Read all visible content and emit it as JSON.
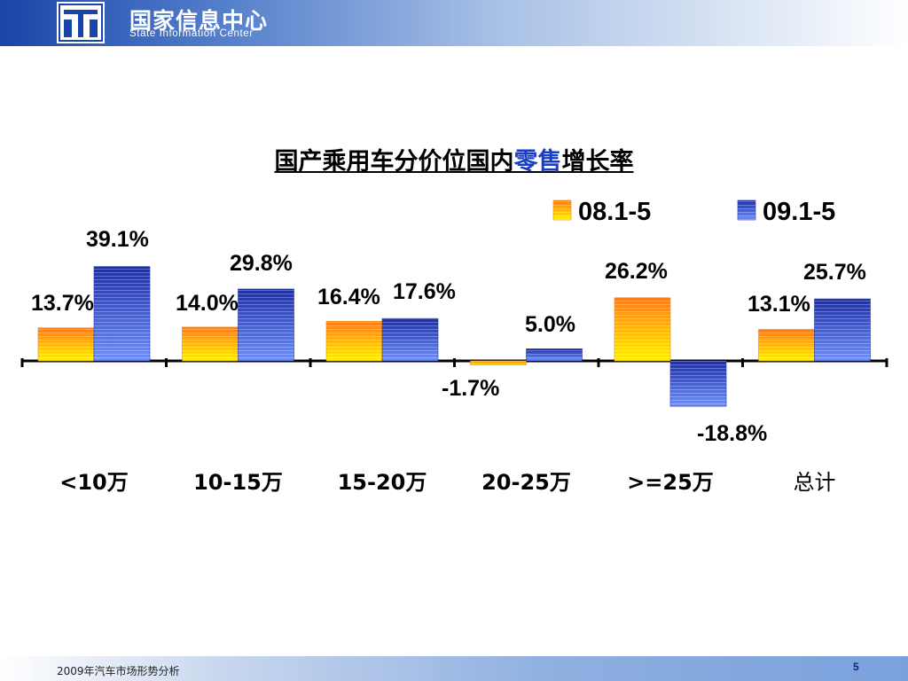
{
  "header": {
    "org_name": "国家信息中心",
    "org_name_en": "State Information Center"
  },
  "title": {
    "before": "国产乘用车分价位国内",
    "highlight": "零售",
    "after": "增长率"
  },
  "chart_data": {
    "type": "bar",
    "categories": [
      "<10万",
      "10-15万",
      "15-20万",
      "20-25万",
      ">=25万",
      "总计"
    ],
    "series": [
      {
        "name": "08.1-5",
        "values": [
          13.7,
          14.0,
          16.4,
          -1.7,
          26.2,
          13.1
        ],
        "labels": [
          "13.7%",
          "14.0%",
          "16.4%",
          "-1.7%",
          "26.2%",
          "13.1%"
        ]
      },
      {
        "name": "09.1-5",
        "values": [
          39.1,
          29.8,
          17.6,
          5.0,
          -18.8,
          25.7
        ],
        "labels": [
          "39.1%",
          "29.8%",
          "17.6%",
          "5.0%",
          "-18.8%",
          "25.7%"
        ]
      }
    ],
    "legend_position": "top-right",
    "grid": false,
    "colors": {
      "series1_top": "#ff7a1a",
      "series1_bottom": "#fff200",
      "series2_top": "#1f2f9e",
      "series2_bottom": "#6f8ff5"
    }
  },
  "footer": {
    "text": "2009年汽车市场形势分析",
    "page": "5"
  }
}
